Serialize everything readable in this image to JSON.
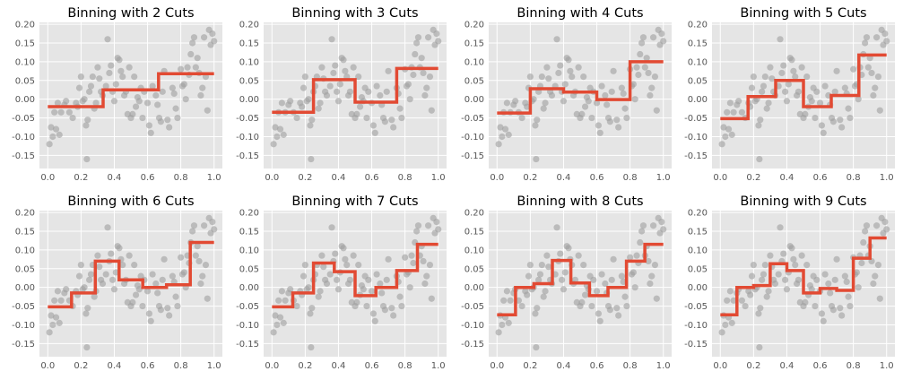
{
  "style": {
    "background": "#ffffff",
    "axes_facecolor": "#e5e5e5",
    "grid_color": "#ffffff",
    "point_color": "#9e9e9e",
    "step_color": "#e24a33",
    "tick_label_color": "#555555"
  },
  "chart_data": [
    {
      "type": "scatter",
      "title": "Binning with 2 Cuts",
      "xlabel": "",
      "ylabel": "",
      "xlim": [
        -0.05,
        1.05
      ],
      "ylim": [
        -0.185,
        0.205
      ],
      "xticks": [
        "0.0",
        "0.2",
        "0.4",
        "0.6",
        "0.8",
        "1.0"
      ],
      "yticks": [
        "-0.15",
        "-0.10",
        "-0.05",
        "0.00",
        "0.05",
        "0.10",
        "0.15",
        "0.20"
      ],
      "grid": true,
      "step_line": [
        [
          0,
          -0.02
        ],
        [
          0.333,
          -0.02
        ],
        [
          0.333,
          0.025
        ],
        [
          0.666,
          0.025
        ],
        [
          0.666,
          0.068
        ],
        [
          1.0,
          0.068
        ]
      ]
    },
    {
      "type": "scatter",
      "title": "Binning with 3 Cuts",
      "xlabel": "",
      "ylabel": "",
      "xlim": [
        -0.05,
        1.05
      ],
      "ylim": [
        -0.185,
        0.205
      ],
      "xticks": [
        "0.0",
        "0.2",
        "0.4",
        "0.6",
        "0.8",
        "1.0"
      ],
      "yticks": [
        "-0.15",
        "-0.10",
        "-0.05",
        "0.00",
        "0.05",
        "0.10",
        "0.15",
        "0.20"
      ],
      "grid": true,
      "step_line": [
        [
          0,
          -0.035
        ],
        [
          0.25,
          -0.035
        ],
        [
          0.25,
          0.052
        ],
        [
          0.5,
          0.052
        ],
        [
          0.5,
          -0.008
        ],
        [
          0.75,
          -0.008
        ],
        [
          0.75,
          0.082
        ],
        [
          1.0,
          0.082
        ]
      ]
    },
    {
      "type": "scatter",
      "title": "Binning with 4 Cuts",
      "xlabel": "",
      "ylabel": "",
      "xlim": [
        -0.05,
        1.05
      ],
      "ylim": [
        -0.185,
        0.205
      ],
      "xticks": [
        "0.0",
        "0.2",
        "0.4",
        "0.6",
        "0.8",
        "1.0"
      ],
      "yticks": [
        "-0.15",
        "-0.10",
        "-0.05",
        "0.00",
        "0.05",
        "0.10",
        "0.15",
        "0.20"
      ],
      "grid": true,
      "step_line": [
        [
          0,
          -0.037
        ],
        [
          0.2,
          -0.037
        ],
        [
          0.2,
          0.028
        ],
        [
          0.4,
          0.028
        ],
        [
          0.4,
          0.019
        ],
        [
          0.6,
          0.019
        ],
        [
          0.6,
          -0.001
        ],
        [
          0.8,
          -0.001
        ],
        [
          0.8,
          0.1
        ],
        [
          1.0,
          0.1
        ]
      ]
    },
    {
      "type": "scatter",
      "title": "Binning with 5 Cuts",
      "xlabel": "",
      "ylabel": "",
      "xlim": [
        -0.05,
        1.05
      ],
      "ylim": [
        -0.185,
        0.205
      ],
      "xticks": [
        "0.0",
        "0.2",
        "0.4",
        "0.6",
        "0.8",
        "1.0"
      ],
      "yticks": [
        "-0.15",
        "-0.10",
        "-0.05",
        "0.00",
        "0.05",
        "0.10",
        "0.15",
        "0.20"
      ],
      "grid": true,
      "step_line": [
        [
          0,
          -0.052
        ],
        [
          0.167,
          -0.052
        ],
        [
          0.167,
          0.007
        ],
        [
          0.333,
          0.007
        ],
        [
          0.333,
          0.05
        ],
        [
          0.5,
          0.05
        ],
        [
          0.5,
          -0.02
        ],
        [
          0.667,
          -0.02
        ],
        [
          0.667,
          0.01
        ],
        [
          0.833,
          0.01
        ],
        [
          0.833,
          0.118
        ],
        [
          1.0,
          0.118
        ]
      ]
    },
    {
      "type": "scatter",
      "title": "Binning with 6 Cuts",
      "xlabel": "",
      "ylabel": "",
      "xlim": [
        -0.05,
        1.05
      ],
      "ylim": [
        -0.185,
        0.205
      ],
      "xticks": [
        "0.0",
        "0.2",
        "0.4",
        "0.6",
        "0.8",
        "1.0"
      ],
      "yticks": [
        "-0.15",
        "-0.10",
        "-0.05",
        "0.00",
        "0.05",
        "0.10",
        "0.15",
        "0.20"
      ],
      "grid": true,
      "step_line": [
        [
          0,
          -0.052
        ],
        [
          0.143,
          -0.052
        ],
        [
          0.143,
          -0.015
        ],
        [
          0.286,
          -0.015
        ],
        [
          0.286,
          0.07
        ],
        [
          0.429,
          0.07
        ],
        [
          0.429,
          0.02
        ],
        [
          0.571,
          0.02
        ],
        [
          0.571,
          0.0
        ],
        [
          0.714,
          0.0
        ],
        [
          0.714,
          0.007
        ],
        [
          0.857,
          0.007
        ],
        [
          0.857,
          0.12
        ],
        [
          1.0,
          0.12
        ]
      ]
    },
    {
      "type": "scatter",
      "title": "Binning with 7 Cuts",
      "xlabel": "",
      "ylabel": "",
      "xlim": [
        -0.05,
        1.05
      ],
      "ylim": [
        -0.185,
        0.205
      ],
      "xticks": [
        "0.0",
        "0.2",
        "0.4",
        "0.6",
        "0.8",
        "1.0"
      ],
      "yticks": [
        "-0.15",
        "-0.10",
        "-0.05",
        "0.00",
        "0.05",
        "0.10",
        "0.15",
        "0.20"
      ],
      "grid": true,
      "step_line": [
        [
          0,
          -0.052
        ],
        [
          0.125,
          -0.052
        ],
        [
          0.125,
          -0.015
        ],
        [
          0.25,
          -0.015
        ],
        [
          0.25,
          0.065
        ],
        [
          0.375,
          0.065
        ],
        [
          0.375,
          0.042
        ],
        [
          0.5,
          0.042
        ],
        [
          0.5,
          -0.022
        ],
        [
          0.625,
          -0.022
        ],
        [
          0.625,
          0.0
        ],
        [
          0.75,
          0.0
        ],
        [
          0.75,
          0.045
        ],
        [
          0.875,
          0.045
        ],
        [
          0.875,
          0.115
        ],
        [
          1.0,
          0.115
        ]
      ]
    },
    {
      "type": "scatter",
      "title": "Binning with 8 Cuts",
      "xlabel": "",
      "ylabel": "",
      "xlim": [
        -0.05,
        1.05
      ],
      "ylim": [
        -0.185,
        0.205
      ],
      "xticks": [
        "0.0",
        "0.2",
        "0.4",
        "0.6",
        "0.8",
        "1.0"
      ],
      "yticks": [
        "-0.15",
        "-0.10",
        "-0.05",
        "0.00",
        "0.05",
        "0.10",
        "0.15",
        "0.20"
      ],
      "grid": true,
      "step_line": [
        [
          0,
          -0.073
        ],
        [
          0.111,
          -0.073
        ],
        [
          0.111,
          0.0
        ],
        [
          0.222,
          0.0
        ],
        [
          0.222,
          0.01
        ],
        [
          0.333,
          0.01
        ],
        [
          0.333,
          0.072
        ],
        [
          0.444,
          0.072
        ],
        [
          0.444,
          0.012
        ],
        [
          0.556,
          0.012
        ],
        [
          0.556,
          -0.022
        ],
        [
          0.667,
          -0.022
        ],
        [
          0.667,
          0.0
        ],
        [
          0.778,
          0.0
        ],
        [
          0.778,
          0.07
        ],
        [
          0.889,
          0.07
        ],
        [
          0.889,
          0.115
        ],
        [
          1.0,
          0.115
        ]
      ]
    },
    {
      "type": "scatter",
      "title": "Binning with 9 Cuts",
      "xlabel": "",
      "ylabel": "",
      "xlim": [
        -0.05,
        1.05
      ],
      "ylim": [
        -0.185,
        0.205
      ],
      "xticks": [
        "0.0",
        "0.2",
        "0.4",
        "0.6",
        "0.8",
        "1.0"
      ],
      "yticks": [
        "-0.15",
        "-0.10",
        "-0.05",
        "0.00",
        "0.05",
        "0.10",
        "0.15",
        "0.20"
      ],
      "grid": true,
      "step_line": [
        [
          0,
          -0.073
        ],
        [
          0.1,
          -0.073
        ],
        [
          0.1,
          0.0
        ],
        [
          0.2,
          0.0
        ],
        [
          0.2,
          0.005
        ],
        [
          0.3,
          0.005
        ],
        [
          0.3,
          0.063
        ],
        [
          0.4,
          0.063
        ],
        [
          0.4,
          0.045
        ],
        [
          0.5,
          0.045
        ],
        [
          0.5,
          -0.015
        ],
        [
          0.6,
          -0.015
        ],
        [
          0.6,
          -0.003
        ],
        [
          0.7,
          -0.003
        ],
        [
          0.7,
          -0.008
        ],
        [
          0.8,
          -0.008
        ],
        [
          0.8,
          0.078
        ],
        [
          0.9,
          0.078
        ],
        [
          0.9,
          0.132
        ],
        [
          1.0,
          0.132
        ]
      ]
    }
  ],
  "scatter_points": [
    [
      0.01,
      -0.12
    ],
    [
      0.02,
      -0.075
    ],
    [
      0.03,
      -0.1
    ],
    [
      0.04,
      -0.035
    ],
    [
      0.05,
      -0.08
    ],
    [
      0.06,
      -0.01
    ],
    [
      0.07,
      -0.095
    ],
    [
      0.08,
      -0.035
    ],
    [
      0.1,
      -0.015
    ],
    [
      0.11,
      -0.005
    ],
    [
      0.13,
      -0.035
    ],
    [
      0.15,
      -0.05
    ],
    [
      0.17,
      -0.01
    ],
    [
      0.18,
      -0.02
    ],
    [
      0.19,
      0.03
    ],
    [
      0.2,
      0.06
    ],
    [
      0.21,
      -0.005
    ],
    [
      0.22,
      0.0
    ],
    [
      0.23,
      -0.07
    ],
    [
      0.235,
      -0.16
    ],
    [
      0.24,
      -0.055
    ],
    [
      0.25,
      0.02
    ],
    [
      0.26,
      0.035
    ],
    [
      0.27,
      0.06
    ],
    [
      0.28,
      -0.025
    ],
    [
      0.29,
      -0.01
    ],
    [
      0.3,
      0.085
    ],
    [
      0.31,
      0.055
    ],
    [
      0.32,
      0.02
    ],
    [
      0.33,
      0.01
    ],
    [
      0.35,
      0.035
    ],
    [
      0.36,
      0.16
    ],
    [
      0.37,
      0.07
    ],
    [
      0.38,
      0.09
    ],
    [
      0.39,
      0.02
    ],
    [
      0.4,
      -0.005
    ],
    [
      0.41,
      0.04
    ],
    [
      0.42,
      0.11
    ],
    [
      0.43,
      0.105
    ],
    [
      0.44,
      0.075
    ],
    [
      0.45,
      0.06
    ],
    [
      0.46,
      0.01
    ],
    [
      0.47,
      0.02
    ],
    [
      0.48,
      -0.04
    ],
    [
      0.49,
      0.085
    ],
    [
      0.5,
      -0.05
    ],
    [
      0.51,
      -0.04
    ],
    [
      0.52,
      0.06
    ],
    [
      0.53,
      -0.02
    ],
    [
      0.54,
      0.005
    ],
    [
      0.55,
      -0.005
    ],
    [
      0.56,
      0.03
    ],
    [
      0.57,
      -0.05
    ],
    [
      0.58,
      0.02
    ],
    [
      0.6,
      -0.01
    ],
    [
      0.61,
      -0.07
    ],
    [
      0.62,
      -0.09
    ],
    [
      0.63,
      0.035
    ],
    [
      0.65,
      0.01
    ],
    [
      0.66,
      -0.015
    ],
    [
      0.67,
      -0.05
    ],
    [
      0.68,
      -0.06
    ],
    [
      0.69,
      0.02
    ],
    [
      0.7,
      0.075
    ],
    [
      0.72,
      -0.055
    ],
    [
      0.73,
      -0.075
    ],
    [
      0.75,
      0.03
    ],
    [
      0.76,
      0.015
    ],
    [
      0.77,
      -0.025
    ],
    [
      0.78,
      -0.05
    ],
    [
      0.8,
      0.08
    ],
    [
      0.81,
      0.035
    ],
    [
      0.82,
      0.04
    ],
    [
      0.83,
      0.0
    ],
    [
      0.84,
      0.085
    ],
    [
      0.85,
      0.065
    ],
    [
      0.86,
      0.12
    ],
    [
      0.87,
      0.15
    ],
    [
      0.88,
      0.165
    ],
    [
      0.89,
      0.085
    ],
    [
      0.9,
      0.11
    ],
    [
      0.91,
      0.07
    ],
    [
      0.92,
      0.01
    ],
    [
      0.93,
      0.03
    ],
    [
      0.94,
      0.165
    ],
    [
      0.95,
      0.06
    ],
    [
      0.96,
      -0.03
    ],
    [
      0.97,
      0.185
    ],
    [
      0.98,
      0.145
    ],
    [
      0.99,
      0.175
    ],
    [
      1.0,
      0.155
    ]
  ]
}
